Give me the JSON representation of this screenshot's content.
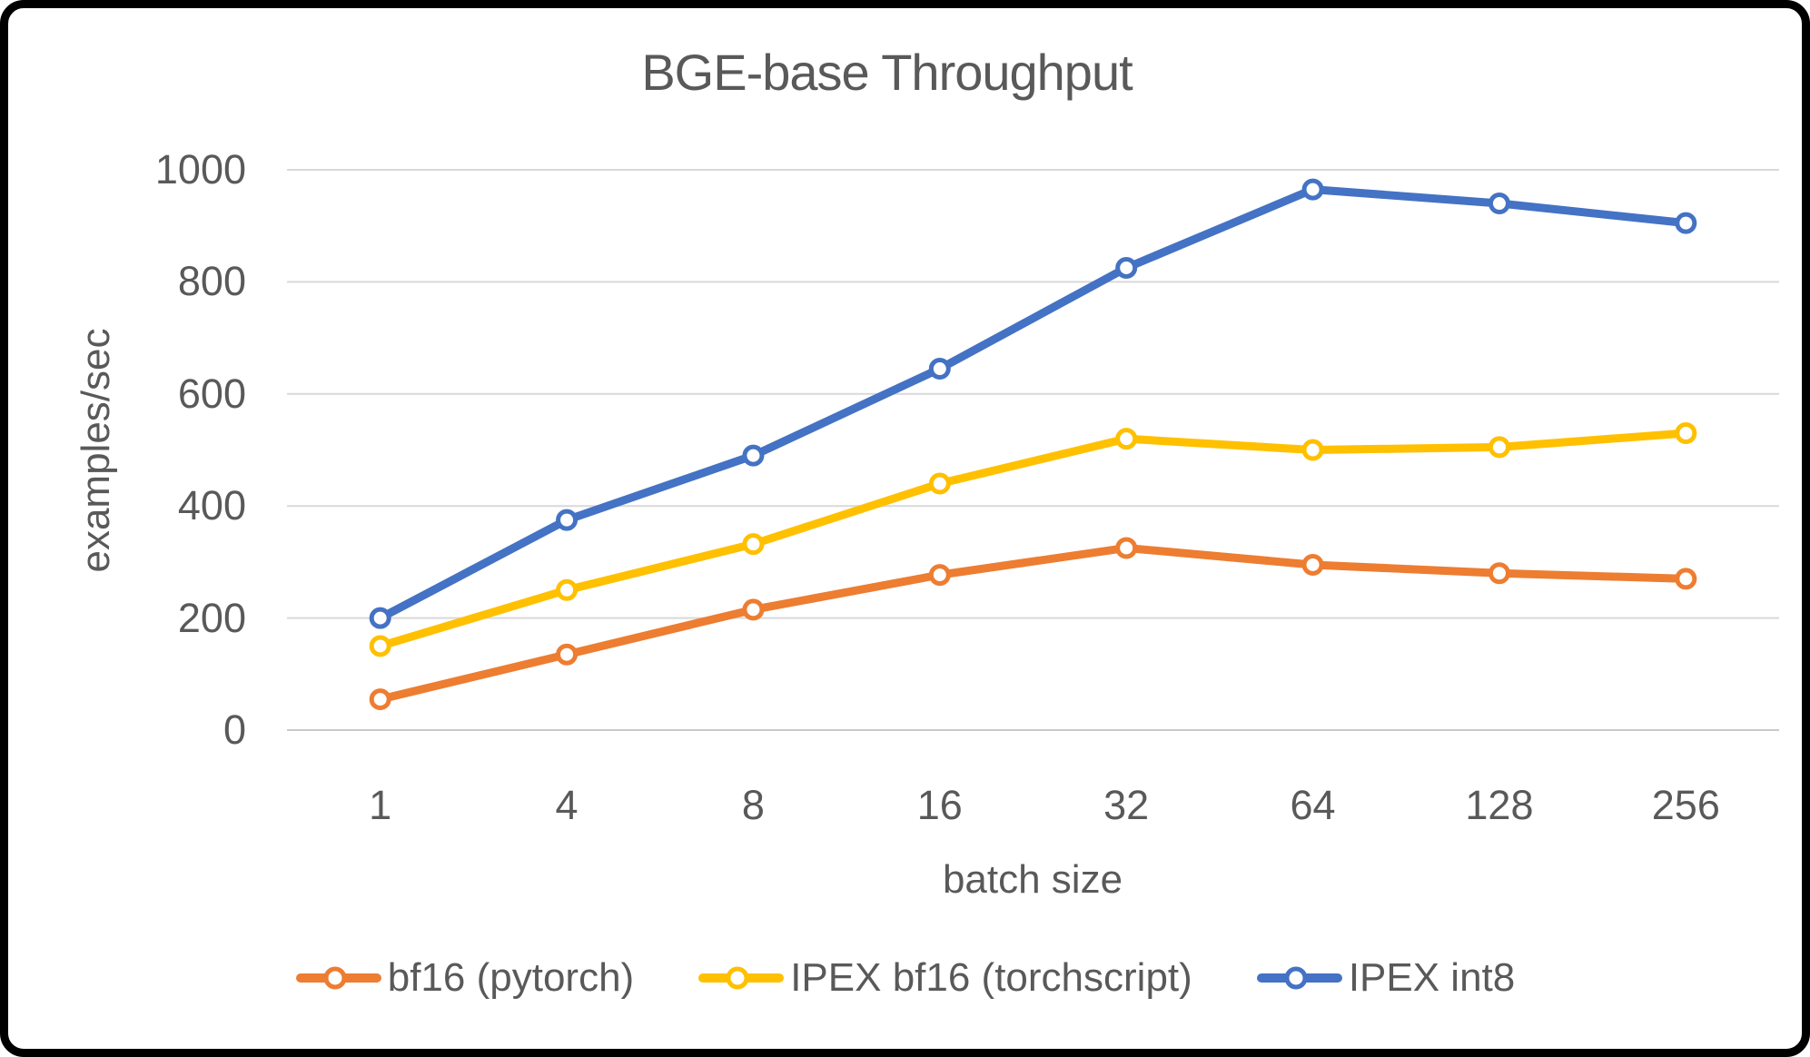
{
  "chart_data": {
    "type": "line",
    "title": "BGE-base Throughput",
    "xlabel": "batch size",
    "ylabel": "examples/sec",
    "categories": [
      "1",
      "4",
      "8",
      "16",
      "32",
      "64",
      "128",
      "256"
    ],
    "series": [
      {
        "name": "bf16 (pytorch)",
        "color": "#ED7D31",
        "values": [
          55,
          135,
          215,
          277,
          325,
          295,
          280,
          270
        ]
      },
      {
        "name": "IPEX bf16 (torchscript)",
        "color": "#FFC000",
        "values": [
          150,
          250,
          332,
          440,
          520,
          500,
          505,
          530
        ]
      },
      {
        "name": "IPEX int8",
        "color": "#4472C4",
        "values": [
          200,
          375,
          490,
          645,
          825,
          965,
          940,
          905
        ]
      }
    ],
    "ylim": [
      0,
      1000
    ],
    "yticks": [
      0,
      200,
      400,
      600,
      800,
      1000
    ],
    "grid": true,
    "legend_position": "bottom",
    "marker_style": "open-circle",
    "text_color": "#595959",
    "gridline_color": "#D9D9D9",
    "axis_line_color": "#C9C9C9"
  }
}
